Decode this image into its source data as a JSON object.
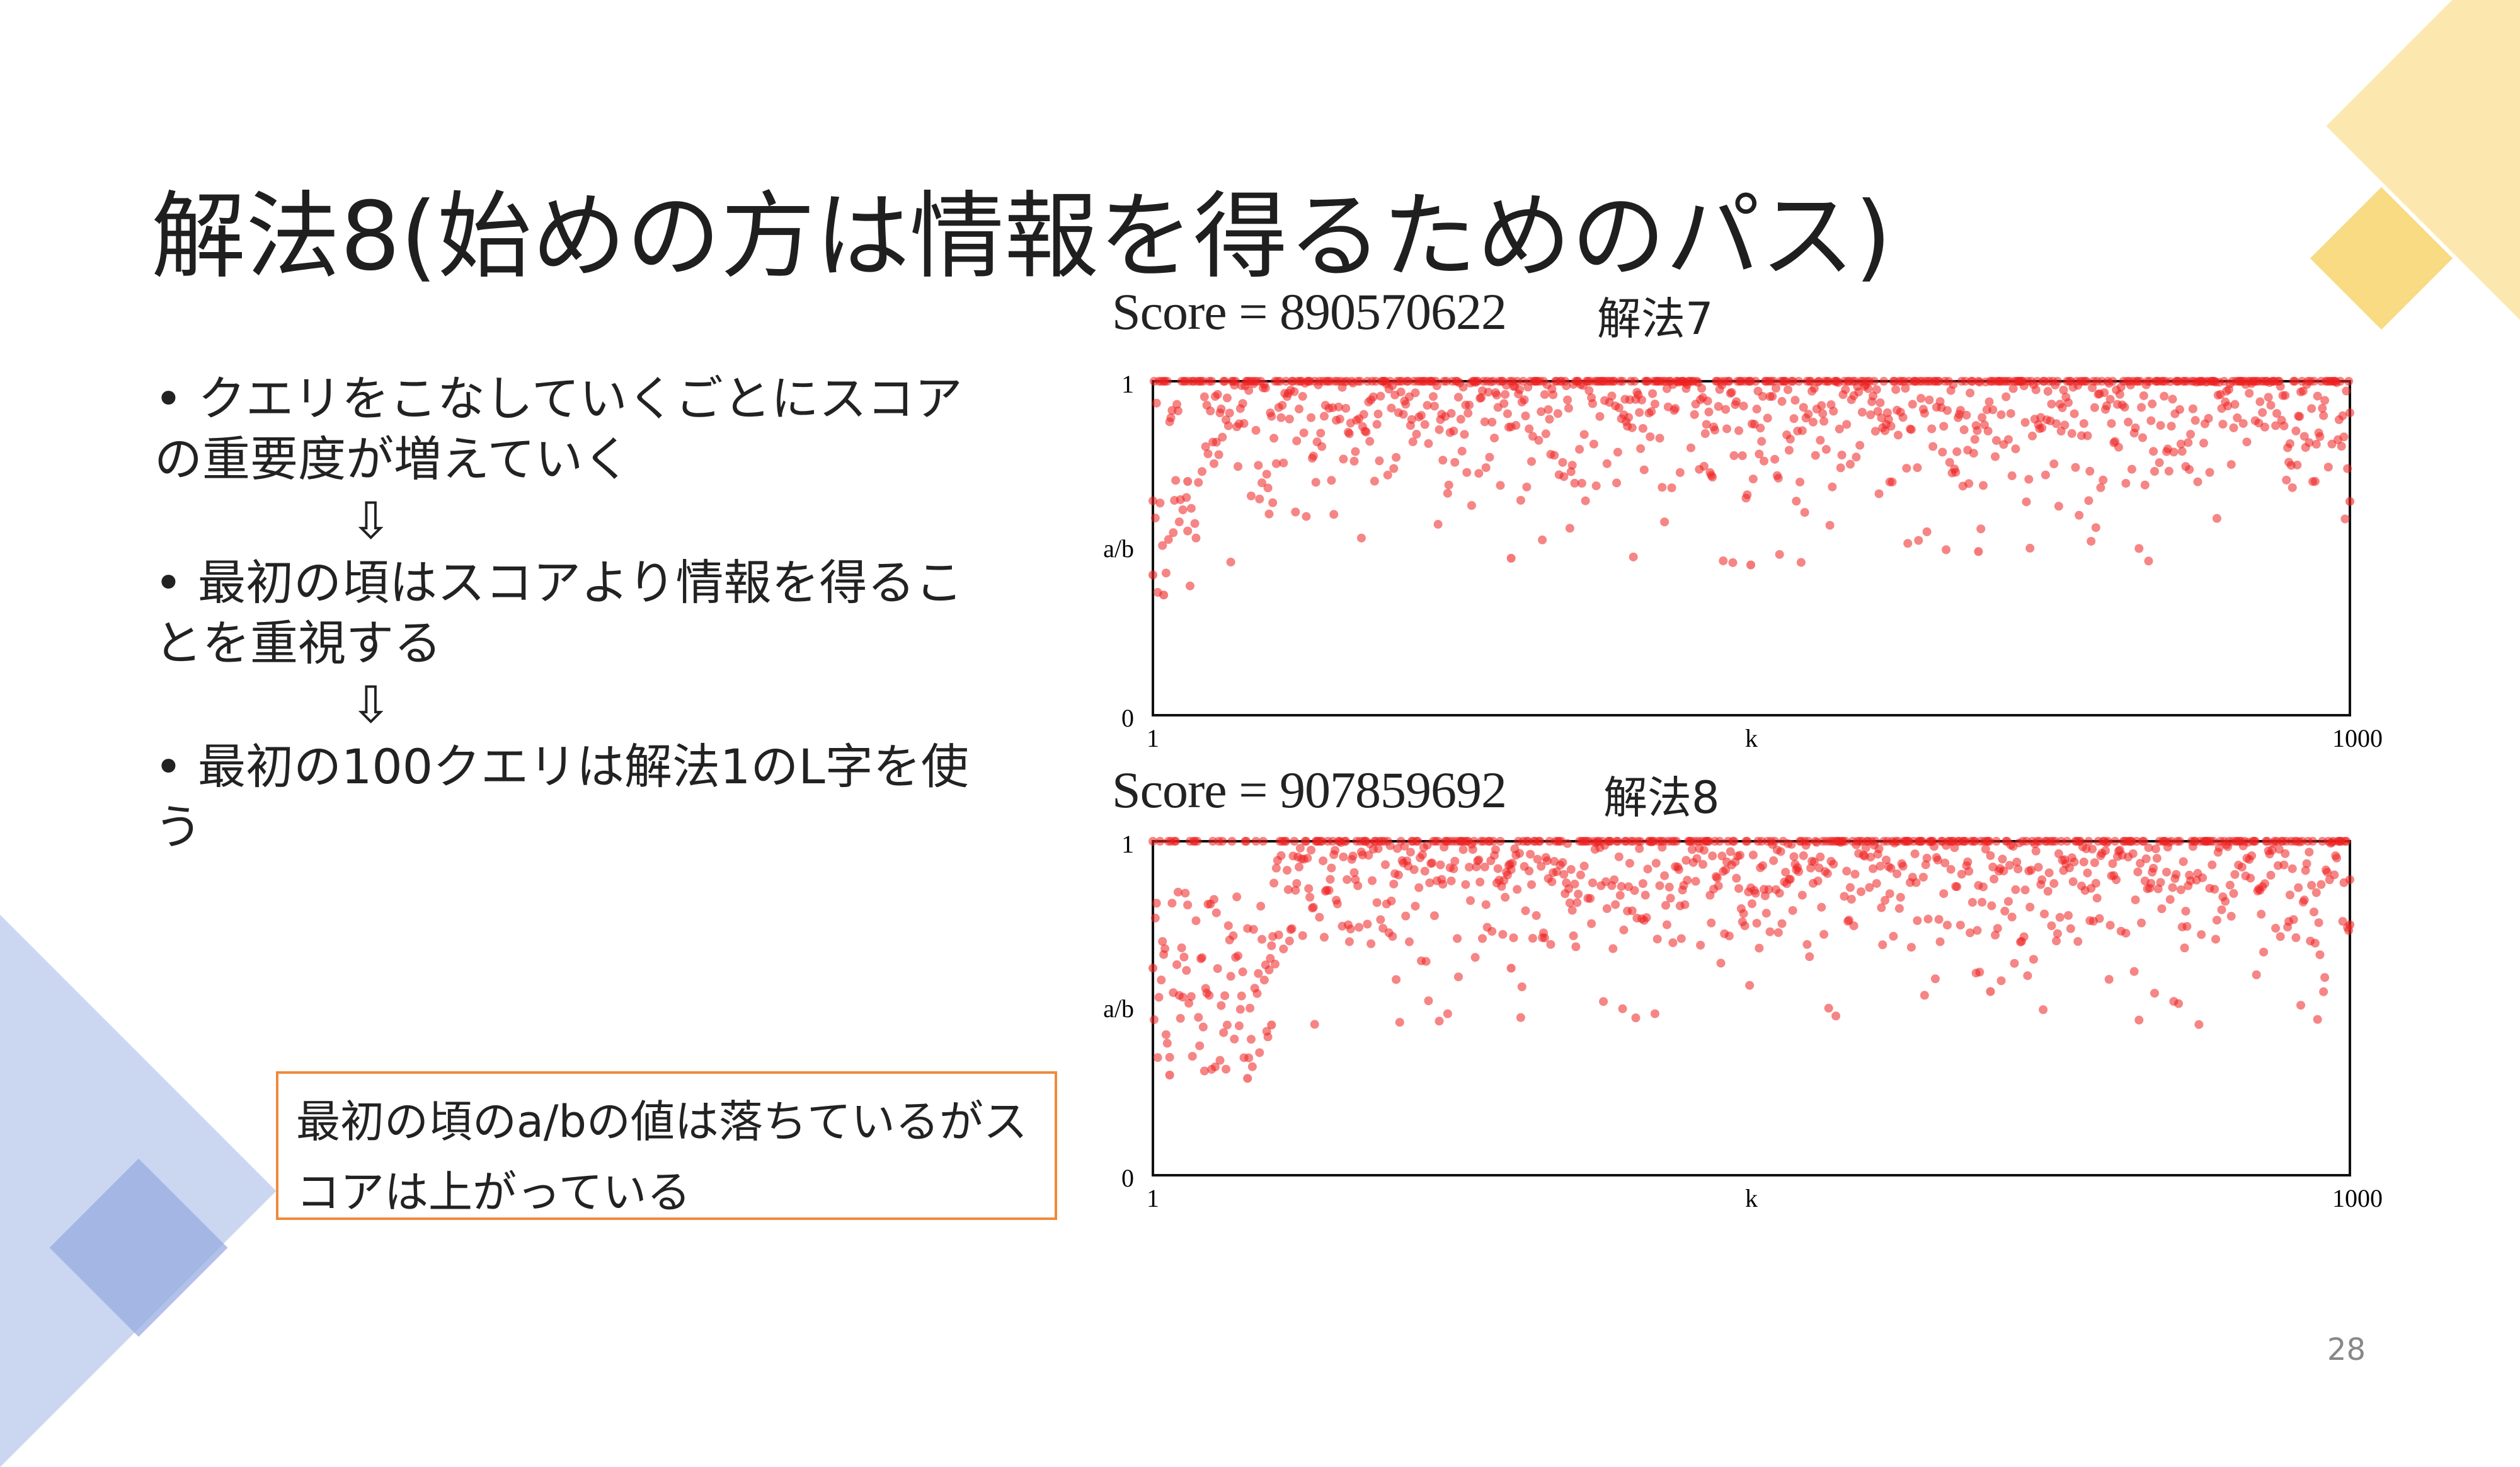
{
  "slide": {
    "title": "解法8(始めの方は情報を得るためのパス)",
    "bullets": [
      {
        "text": "• クエリをこなしていくごとにスコアの重要度が増えていく"
      },
      {
        "text": "• 最初の頃はスコアより情報を得ることを重視する"
      },
      {
        "text": "• 最初の100クエリは解法1のL字を使う"
      }
    ],
    "arrow": "⇩",
    "callout": "最初の頃のa/bの値は落ちているがスコアは上がっている",
    "page_number": "28"
  },
  "colors": {
    "accent_yellow": "#fbe29d",
    "accent_yellow_dark": "#f7cf55",
    "accent_blue": "#c5d2ef",
    "accent_blue_dark": "#8aa2dd",
    "point_red": "#ee2020",
    "callout_border": "#ef8a3c"
  },
  "chart_data": [
    {
      "type": "scatter",
      "title": "Score = 890570622",
      "tag": "解法7",
      "xlabel": "k",
      "ylabel": "a/b",
      "xlim": [
        1,
        1000
      ],
      "ylim": [
        0,
        1
      ],
      "x_ticks": [
        "1",
        "1000"
      ],
      "y_ticks": [
        "0",
        "1"
      ],
      "points_count": 1000,
      "point_color": "#ee2020",
      "summary": [
        {
          "k": 1,
          "a_b": 0.42
        },
        {
          "k": 10,
          "a_b": 0.36
        },
        {
          "k": 30,
          "a_b": 0.7
        },
        {
          "k": 300,
          "a_b": 0.47
        },
        {
          "k": 500,
          "a_b": 0.45
        },
        {
          "k": 690,
          "a_b": 0.49
        },
        {
          "k": 1000,
          "a_b": 0.64
        }
      ],
      "seed": 7,
      "early_drop": false
    },
    {
      "type": "scatter",
      "title": "Score = 907859692",
      "tag": "解法8",
      "xlabel": "k",
      "ylabel": "a/b",
      "xlim": [
        1,
        1000
      ],
      "ylim": [
        0,
        1
      ],
      "x_ticks": [
        "1",
        "1000"
      ],
      "y_ticks": [
        "0",
        "1"
      ],
      "points_count": 1000,
      "point_color": "#ee2020",
      "summary": [
        {
          "k": 1,
          "a_b": 0.62
        },
        {
          "k": 15,
          "a_b": 0.3
        },
        {
          "k": 80,
          "a_b": 0.29
        },
        {
          "k": 100,
          "a_b": 0.45
        },
        {
          "k": 300,
          "a_b": 0.62
        },
        {
          "k": 700,
          "a_b": 0.55
        },
        {
          "k": 1000,
          "a_b": 0.75
        }
      ],
      "seed": 8,
      "early_drop": true
    }
  ]
}
